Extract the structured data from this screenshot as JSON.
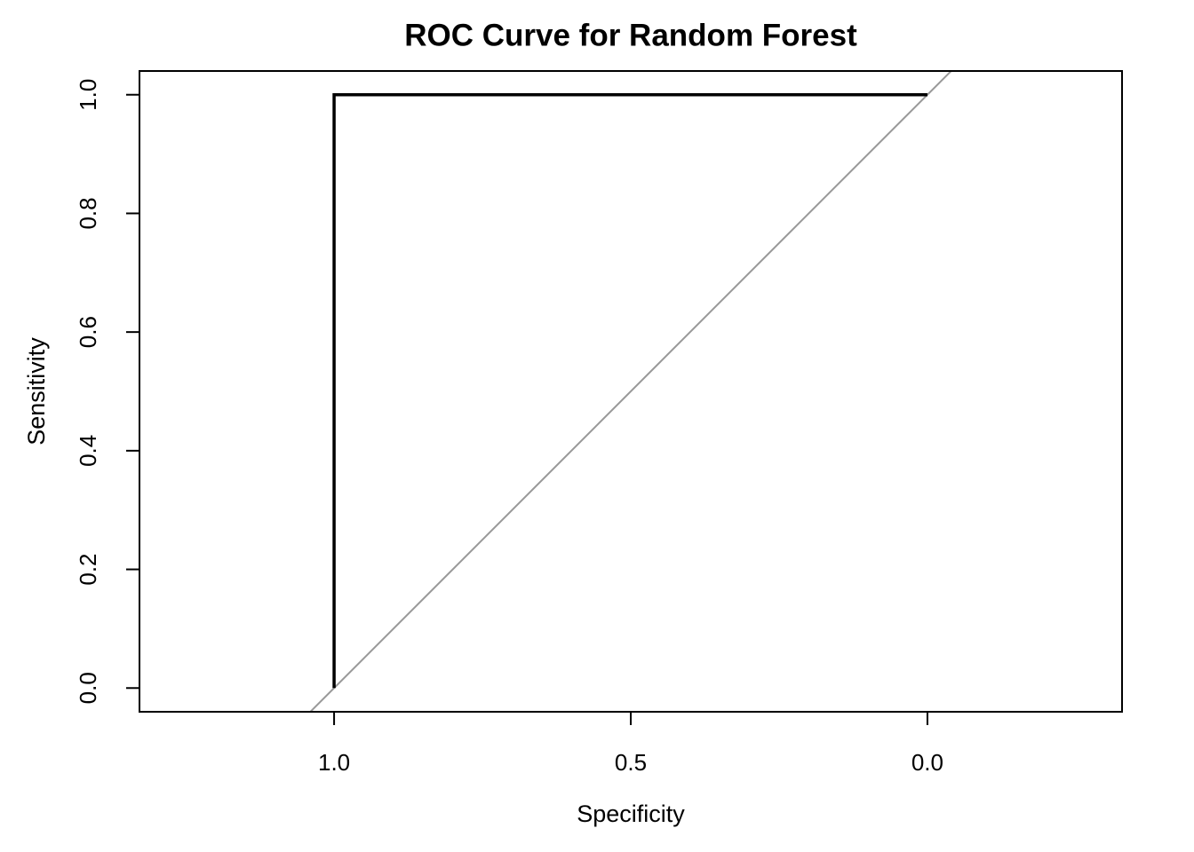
{
  "chart_data": {
    "type": "line",
    "title": "ROC Curve for Random Forest",
    "xlabel": "Specificity",
    "ylabel": "Sensitivity",
    "x": [
      1,
      1,
      0
    ],
    "values": [
      0,
      1,
      1
    ],
    "color": "#000000",
    "xlim": [
      1.328,
      -0.328
    ],
    "ylim": [
      -0.04,
      1.04
    ],
    "xticks": [
      {
        "value": 1,
        "label": "1.0"
      },
      0.5,
      {
        "value": 0,
        "label": "0.0"
      }
    ],
    "yticks": [
      {
        "value": 0,
        "label": "0.0"
      },
      0.2,
      0.4,
      0.6,
      0.8,
      {
        "value": 1,
        "label": "1.0"
      }
    ],
    "diagonal_color": "#999999"
  }
}
